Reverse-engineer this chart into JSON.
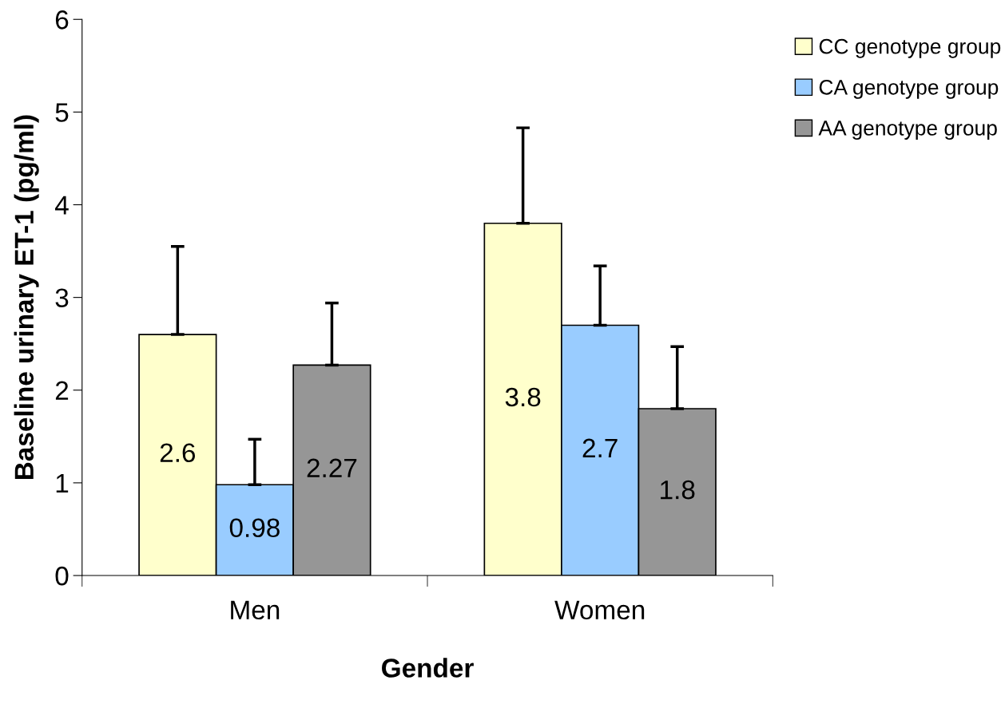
{
  "chart_data": {
    "type": "bar",
    "xlabel": "Gender",
    "ylabel": "Baseline urinary ET-1 (pg/ml)",
    "categories": [
      "Men",
      "Women"
    ],
    "series": [
      {
        "name": "CC genotype group",
        "color": "#ffffcc",
        "values": [
          2.6,
          3.8
        ],
        "errors": [
          [
            2.6,
            3.55
          ],
          [
            3.8,
            4.83
          ]
        ]
      },
      {
        "name": "CA genotype group",
        "color": "#99ccff",
        "values": [
          0.98,
          2.7
        ],
        "errors": [
          [
            0.98,
            1.47
          ],
          [
            2.7,
            3.34
          ]
        ]
      },
      {
        "name": "AA genotype group",
        "color": "#969696",
        "values": [
          2.27,
          1.8
        ],
        "errors": [
          [
            2.27,
            2.94
          ],
          [
            1.8,
            2.47
          ]
        ]
      }
    ],
    "ylim": [
      0,
      6
    ],
    "yticks": [
      0,
      1,
      2,
      3,
      4,
      5,
      6
    ],
    "data_labels": true,
    "grid": false,
    "legend": "top right"
  }
}
